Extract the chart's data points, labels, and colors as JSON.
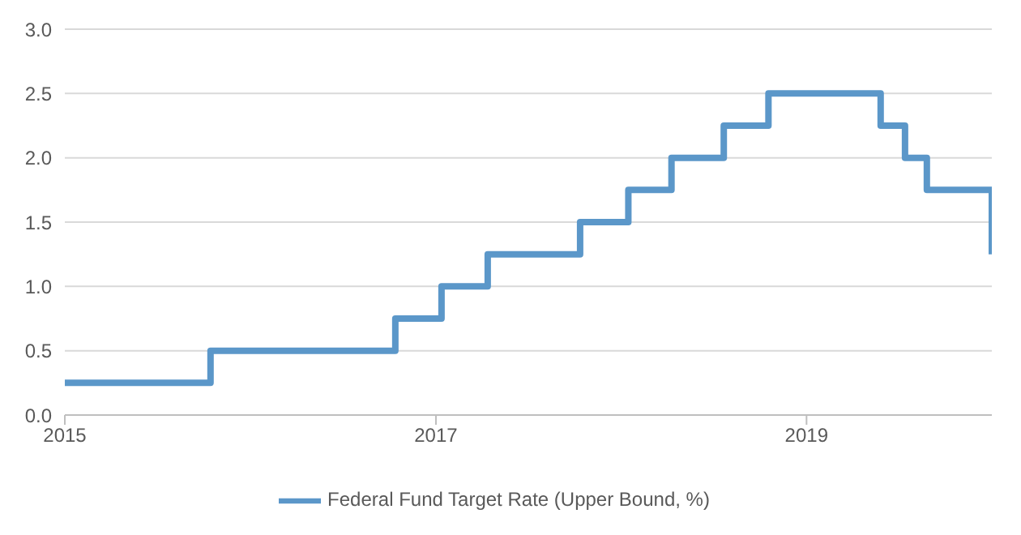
{
  "chart_data": {
    "type": "step",
    "x": [
      "2015-01-01",
      "2015-10-15",
      "2016-10-13",
      "2017-01-12",
      "2017-04-13",
      "2017-10-12",
      "2018-01-15",
      "2018-04-10",
      "2018-07-22",
      "2018-10-18",
      "2019-05-27",
      "2019-07-14",
      "2019-08-26",
      "2020-01-01"
    ],
    "series": [
      {
        "name": "Federal Fund Target Rate (Upper Bound, %)",
        "color": "#5b97c9",
        "values": [
          0.25,
          0.5,
          0.75,
          1.0,
          1.25,
          1.5,
          1.75,
          2.0,
          2.25,
          2.5,
          2.25,
          2.0,
          1.75,
          1.25
        ]
      }
    ],
    "xlim": [
      "2015-01-01",
      "2020-01-01"
    ],
    "xticks": [
      "2015",
      "2017",
      "2019"
    ],
    "ylim": [
      0,
      3
    ],
    "yticks": [
      {
        "value": 0,
        "label": "0.0"
      },
      0.5,
      {
        "value": 1,
        "label": "1.0"
      },
      1.5,
      {
        "value": 2,
        "label": "2.0"
      },
      2.5,
      {
        "value": 3,
        "label": "3.0"
      }
    ],
    "grid": "y",
    "legend": "bottom",
    "marker": "none",
    "line_style": "solid"
  }
}
